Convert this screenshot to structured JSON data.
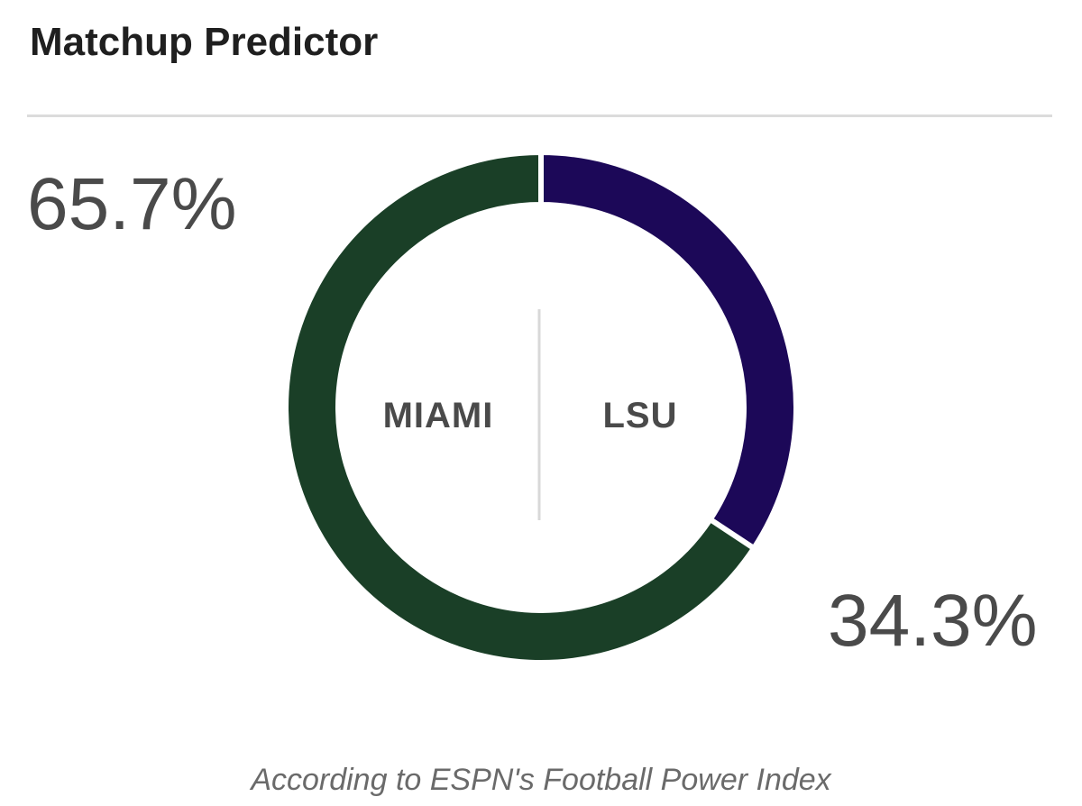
{
  "header": {
    "title": "Matchup Predictor"
  },
  "chart_data": {
    "type": "pie",
    "variant": "donut",
    "series": [
      {
        "name": "MIAMI",
        "value": 65.7,
        "label": "65.7%",
        "color": "#1a3f27"
      },
      {
        "name": "LSU",
        "value": 34.3,
        "label": "34.3%",
        "color": "#1c0858"
      }
    ],
    "start": "top",
    "direction": "clockwise",
    "first_slice_drawn": "LSU"
  },
  "footer": {
    "note": "According to ESPN's Football Power Index"
  }
}
